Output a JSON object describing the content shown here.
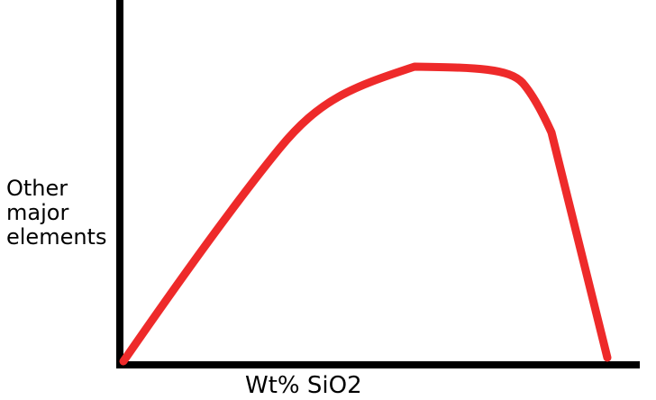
{
  "diagram": {
    "y_axis_label_lines": [
      "Other",
      "major",
      "elements"
    ],
    "x_axis_label": "Wt% SiO2",
    "curve_color": "#ee2a2a",
    "axis_color": "#000000"
  }
}
